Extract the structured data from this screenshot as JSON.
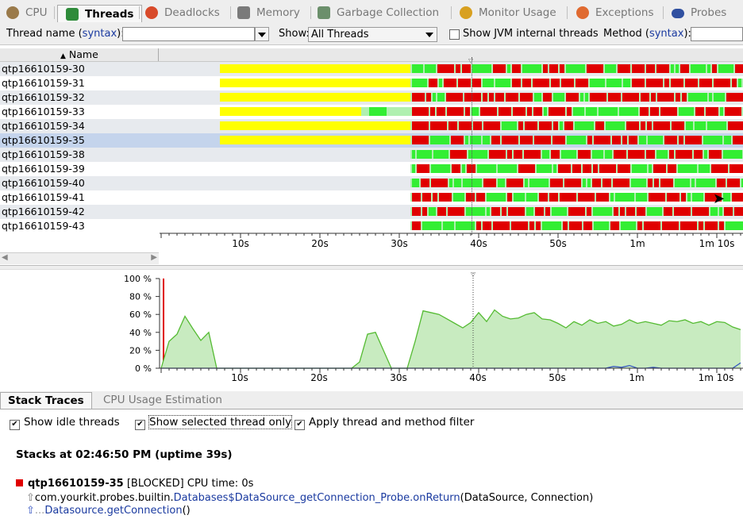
{
  "tabs": [
    {
      "label": "CPU",
      "icon": "cpu-icon",
      "color": "#9a7a4a",
      "active": false
    },
    {
      "label": "Threads",
      "icon": "threads-icon",
      "color": "#2e8b3a",
      "active": true
    },
    {
      "label": "Deadlocks",
      "icon": "deadlocks-icon",
      "color": "#d84a2a",
      "active": false
    },
    {
      "label": "Memory",
      "icon": "memory-icon",
      "color": "#7a7a7a",
      "active": false
    },
    {
      "label": "Garbage Collection",
      "icon": "trash-icon",
      "color": "#6b8f6b",
      "active": false
    },
    {
      "label": "Monitor Usage",
      "icon": "monitor-icon",
      "color": "#d8a020",
      "active": false
    },
    {
      "label": "Exceptions",
      "icon": "exceptions-icon",
      "color": "#e06a30",
      "active": false
    },
    {
      "label": "Probes",
      "icon": "probes-icon",
      "color": "#3050a0",
      "active": false
    }
  ],
  "filter": {
    "thread_name_label": "Thread name (",
    "syntax": "syntax",
    "close_paren_colon": "):",
    "show_label": "Show:",
    "show_value": "All Threads",
    "jvm_label": "Show JVM internal threads",
    "method_label": "Method (",
    "thread_name_value": "",
    "method_value": ""
  },
  "column_header": "Name",
  "threads": [
    {
      "name": "qtp16610159-30",
      "selected": false
    },
    {
      "name": "qtp16610159-31",
      "selected": false
    },
    {
      "name": "qtp16610159-32",
      "selected": false
    },
    {
      "name": "qtp16610159-33",
      "selected": false
    },
    {
      "name": "qtp16610159-34",
      "selected": false
    },
    {
      "name": "qtp16610159-35",
      "selected": true
    },
    {
      "name": "qtp16610159-38",
      "selected": false
    },
    {
      "name": "qtp16610159-39",
      "selected": false
    },
    {
      "name": "qtp16610159-40",
      "selected": false
    },
    {
      "name": "qtp16610159-41",
      "selected": false
    },
    {
      "name": "qtp16610159-42",
      "selected": false
    },
    {
      "name": "qtp16610159-43",
      "selected": false
    }
  ],
  "colors": {
    "yellow": "#ffff00",
    "red": "#e00000",
    "green": "#33ee33",
    "light_green": "#b0f0b0",
    "chart_fill": "#c8ebc0",
    "chart_line": "#55bb33",
    "selection": "#c4d4ec",
    "blocked_marker": "#e00000",
    "cpu_line": "#3050c0"
  },
  "time_axis": {
    "ticks": [
      "10s",
      "20s",
      "30s",
      "40s",
      "50s",
      "1m",
      "1m 10s"
    ]
  },
  "chart_data": {
    "type": "area",
    "x": [
      0,
      1,
      2,
      3,
      4,
      5,
      6,
      7,
      8,
      9,
      10,
      11,
      12,
      13,
      14,
      15,
      16,
      17,
      18,
      19,
      20,
      21,
      22,
      23,
      24,
      25,
      26,
      27,
      28,
      29,
      30,
      31,
      32,
      33,
      34,
      35,
      36,
      37,
      38,
      39,
      40,
      41,
      42,
      43,
      44,
      45,
      46,
      47,
      48,
      49,
      50,
      51,
      52,
      53,
      54,
      55,
      56,
      57,
      58,
      59,
      60,
      61,
      62,
      63,
      64,
      65,
      66,
      67,
      68,
      69,
      70,
      71,
      72,
      73
    ],
    "values": [
      0,
      30,
      38,
      58,
      44,
      31,
      40,
      0,
      0,
      0,
      0,
      0,
      0,
      0,
      0,
      0,
      0,
      0,
      0,
      0,
      0,
      0,
      0,
      0,
      0,
      7,
      38,
      40,
      20,
      0,
      0,
      0,
      30,
      64,
      62,
      60,
      55,
      50,
      45,
      51,
      62,
      52,
      65,
      58,
      55,
      56,
      60,
      62,
      55,
      54,
      50,
      45,
      52,
      48,
      54,
      50,
      52,
      47,
      49,
      54,
      50,
      52,
      50,
      48,
      53,
      52,
      54,
      50,
      52,
      48,
      52,
      51,
      46,
      43
    ],
    "cpu_values": [
      0,
      0,
      0,
      0,
      0,
      0,
      0,
      0,
      0,
      0,
      0,
      0,
      0,
      0,
      0,
      0,
      0,
      0,
      0,
      0,
      0,
      0,
      0,
      0,
      0,
      0,
      0,
      0,
      0,
      0,
      0,
      0,
      0,
      0,
      0,
      0,
      0,
      0,
      0,
      0,
      0,
      0,
      0,
      0,
      0,
      0,
      0,
      0,
      0,
      0,
      0,
      0,
      0,
      0,
      0,
      0,
      0,
      2,
      1,
      3,
      0,
      0,
      1,
      0,
      0,
      0,
      0,
      0,
      0,
      0,
      0,
      0,
      0,
      6
    ],
    "ylim": [
      0,
      100
    ],
    "yticks": [
      "100 %",
      "80 %",
      "60 %",
      "40 %",
      "20 %",
      "0 %"
    ],
    "xticks": [
      "10s",
      "20s",
      "30s",
      "40s",
      "50s",
      "1m",
      "1m 10s"
    ],
    "marker_x": 39.3
  },
  "bottom_tabs": [
    {
      "label": "Stack Traces",
      "active": true
    },
    {
      "label": "CPU Usage Estimation",
      "active": false
    }
  ],
  "options": [
    {
      "label": "Show idle threads",
      "checked": true
    },
    {
      "label": "Show selected thread only",
      "checked": true
    },
    {
      "label": "Apply thread and method filter",
      "checked": true
    }
  ],
  "stacks": {
    "title": "Stacks at 02:46:50 PM (uptime 39s)",
    "thread_name": "qtp16610159-35",
    "state": "[BLOCKED]",
    "cpu_time": "CPU time: 0s",
    "frame1_pkg": "com.yourkit.probes.builtin.",
    "frame1_method": "Databases$DataSource_getConnection_Probe.onReturn",
    "frame1_args": "(DataSource, Connection)",
    "frame2_prefix": "...",
    "frame2_method": "Datasource.getConnection",
    "frame2_args": "()"
  }
}
